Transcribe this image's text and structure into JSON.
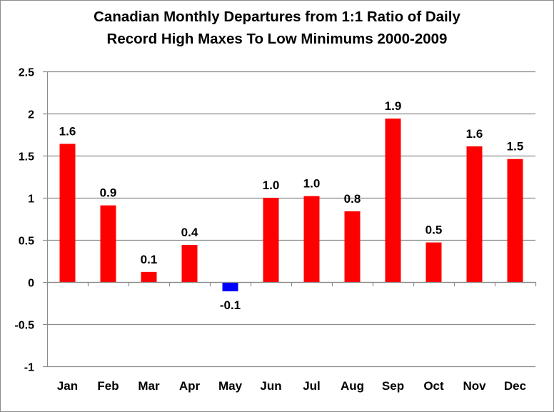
{
  "chart_data": {
    "type": "bar",
    "title_lines": [
      "Canadian Monthly Departures from 1:1 Ratio of Daily",
      "Record High Maxes To Low Minimums 2000-2009"
    ],
    "xlabel": "",
    "ylabel": "",
    "ylim": [
      -1,
      2.5
    ],
    "ytick_step": 0.5,
    "ytick_labels": [
      "2.5",
      "2",
      "1.5",
      "1",
      "0.5",
      "0",
      "-0.5",
      "-1"
    ],
    "grid": true,
    "legend": "none",
    "categories": [
      "Jan",
      "Feb",
      "Mar",
      "Apr",
      "May",
      "Jun",
      "Jul",
      "Aug",
      "Sep",
      "Oct",
      "Nov",
      "Dec"
    ],
    "values": [
      1.64,
      0.91,
      0.12,
      0.44,
      -0.11,
      1.0,
      1.02,
      0.84,
      1.94,
      0.47,
      1.61,
      1.46
    ],
    "data_labels": [
      "1.6",
      "0.9",
      "0.1",
      "0.4",
      "-0.1",
      "1.0",
      "1.0",
      "0.8",
      "1.9",
      "0.5",
      "1.6",
      "1.5"
    ],
    "colors": {
      "positive": "#ff0000",
      "negative": "#0000ff",
      "grid": "#8c8c8c",
      "axis": "#8c8c8c"
    }
  }
}
